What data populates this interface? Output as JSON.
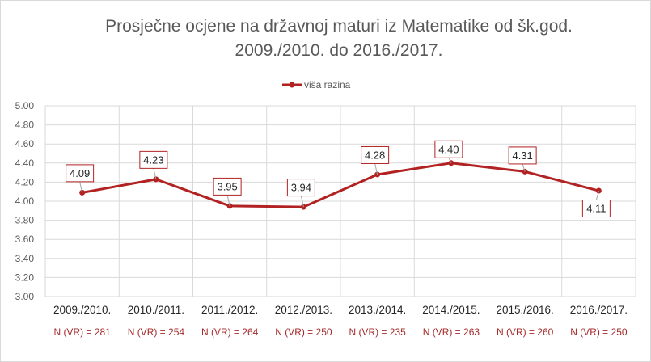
{
  "chart_data": {
    "type": "line",
    "title_lines": [
      "Prosječne ocjene na državnoj maturi iz Matematike od šk.god.",
      "2009./2010. do 2016./2017."
    ],
    "categories": [
      "2009./2010.",
      "2010./2011.",
      "2011./2012.",
      "2012./2013.",
      "2013./2014.",
      "2014./2015.",
      "2015./2016.",
      "2016./2017."
    ],
    "series": [
      {
        "name": "viša razina",
        "values": [
          4.09,
          4.23,
          3.95,
          3.94,
          4.28,
          4.4,
          4.31,
          4.11
        ],
        "data_labels": [
          "4.09",
          "4.23",
          "3.95",
          "3.94",
          "4.28",
          "4.40",
          "4.31",
          "4.11"
        ],
        "color": "#b22222"
      }
    ],
    "annotations": [
      "N (VR) = 281",
      "N (VR) = 254",
      "N (VR) = 264",
      "N (VR) = 250",
      "N (VR) = 235",
      "N (VR) = 263",
      "N (VR) = 260",
      "N (VR) = 250"
    ],
    "ylim": [
      3.0,
      5.0
    ],
    "yticks": [
      "3.00",
      "3.20",
      "3.40",
      "3.60",
      "3.80",
      "4.00",
      "4.20",
      "4.40",
      "4.60",
      "4.80",
      "5.00"
    ],
    "grid": true,
    "legend_position": "top-center",
    "colors": {
      "line": "#b22222",
      "grid": "#d9d9d9",
      "annotation": "#a52a2a"
    }
  }
}
